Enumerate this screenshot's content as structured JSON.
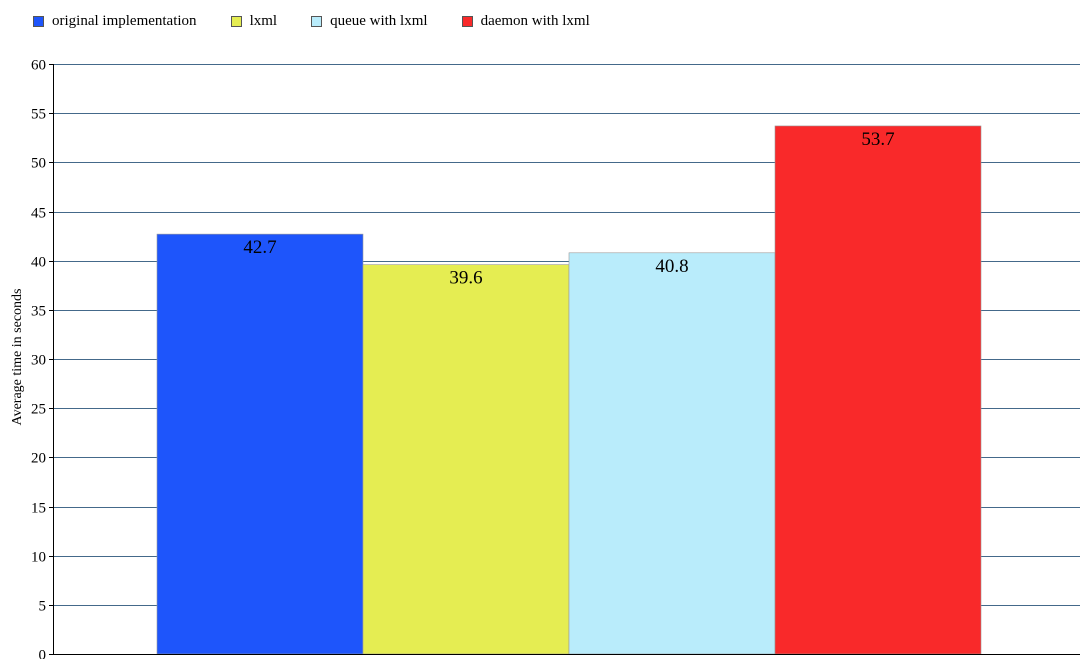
{
  "chart_data": {
    "type": "bar",
    "title": "",
    "xlabel": "",
    "ylabel": "Average time in seconds",
    "ylim": [
      0,
      60
    ],
    "yticks": [
      0,
      5,
      10,
      15,
      20,
      25,
      30,
      35,
      40,
      45,
      50,
      55,
      60
    ],
    "grid": "horizontal",
    "legend_position": "top-left",
    "series": [
      {
        "name": "original implementation",
        "value": 42.7,
        "label": "42.7",
        "color": "#1e55fb"
      },
      {
        "name": "lxml",
        "value": 39.6,
        "label": "39.6",
        "color": "#e5ed52"
      },
      {
        "name": "queue with lxml",
        "value": 40.8,
        "label": "40.8",
        "color": "#b9ecfb"
      },
      {
        "name": "daemon with lxml",
        "value": 53.7,
        "label": "53.7",
        "color": "#f9292a"
      }
    ]
  }
}
